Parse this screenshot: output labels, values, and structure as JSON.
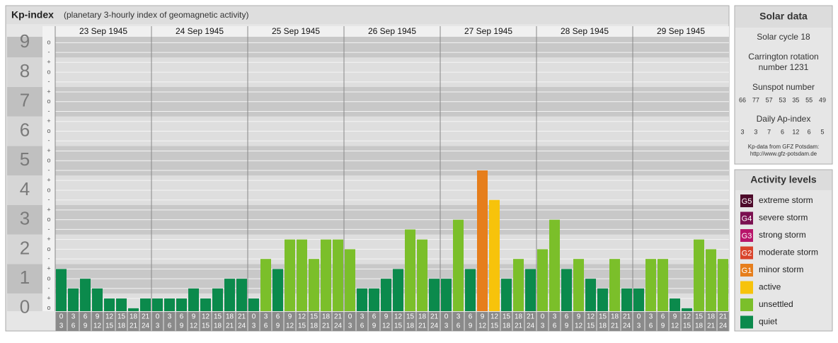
{
  "chart_data": {
    "type": "bar",
    "title": "Kp-index",
    "subtitle": "(planetary 3-hourly index of geomagnetic activity)",
    "days": [
      "23 Sep 1945",
      "24 Sep 1945",
      "25 Sep 1945",
      "26 Sep 1945",
      "27 Sep 1945",
      "28 Sep 1945",
      "29 Sep 1945"
    ],
    "intervals": [
      [
        0,
        3
      ],
      [
        3,
        6
      ],
      [
        6,
        9
      ],
      [
        9,
        12
      ],
      [
        12,
        15
      ],
      [
        15,
        18
      ],
      [
        18,
        21
      ],
      [
        21,
        24
      ]
    ],
    "values": [
      1.33,
      0.67,
      1,
      0.67,
      0.33,
      0.33,
      0,
      0.33,
      0.33,
      0.33,
      0.33,
      0.67,
      0.33,
      0.67,
      1,
      1,
      0.33,
      1.67,
      1.33,
      2.33,
      2.33,
      1.67,
      2.33,
      2.33,
      2,
      0.67,
      0.67,
      1,
      1.33,
      2.67,
      2.33,
      1,
      1,
      3,
      1.33,
      4.67,
      3.67,
      1,
      1.67,
      1.33,
      2,
      3,
      1.33,
      1.67,
      1,
      0.67,
      1.67,
      0.67,
      0.67,
      1.67,
      1.67,
      0.33,
      0,
      2.33,
      2,
      1.67
    ],
    "ylim": [
      -0.1,
      9.2
    ],
    "yticks": [
      0,
      1,
      2,
      3,
      4,
      5,
      6,
      7,
      8,
      9
    ],
    "minor_ticks": [
      {
        "value": 0,
        "label": "o"
      },
      {
        "value": 0.33,
        "label": "+"
      },
      {
        "value": 0.67,
        "label": "-"
      },
      {
        "value": 1,
        "label": "o"
      },
      {
        "value": 1.33,
        "label": "+"
      },
      {
        "value": 1.67,
        "label": "-"
      },
      {
        "value": 2,
        "label": "o"
      },
      {
        "value": 2.33,
        "label": "+"
      },
      {
        "value": 2.67,
        "label": "-"
      },
      {
        "value": 3,
        "label": "o"
      },
      {
        "value": 3.33,
        "label": "+"
      },
      {
        "value": 3.67,
        "label": "-"
      },
      {
        "value": 4,
        "label": "o"
      },
      {
        "value": 4.33,
        "label": "+"
      },
      {
        "value": 4.67,
        "label": "-"
      },
      {
        "value": 5,
        "label": "o"
      },
      {
        "value": 5.33,
        "label": "+"
      },
      {
        "value": 5.67,
        "label": "-"
      },
      {
        "value": 6,
        "label": "o"
      },
      {
        "value": 6.33,
        "label": "+"
      },
      {
        "value": 6.67,
        "label": "-"
      },
      {
        "value": 7,
        "label": "o"
      },
      {
        "value": 7.33,
        "label": "+"
      },
      {
        "value": 7.67,
        "label": "-"
      },
      {
        "value": 8,
        "label": "o"
      },
      {
        "value": 8.33,
        "label": "+"
      },
      {
        "value": 8.67,
        "label": "-"
      },
      {
        "value": 9,
        "label": "o"
      }
    ],
    "grid": true,
    "legend_title": "Activity levels",
    "levels": [
      {
        "badge": "G5",
        "label": "extreme storm",
        "color": "#4d0a2a",
        "min": 8.67
      },
      {
        "badge": "G4",
        "label": "severe storm",
        "color": "#7a1050",
        "min": 7.67
      },
      {
        "badge": "G3",
        "label": "strong storm",
        "color": "#b8156a",
        "min": 6.67
      },
      {
        "badge": "G2",
        "label": "moderate storm",
        "color": "#d9432a",
        "min": 5.67
      },
      {
        "badge": "G1",
        "label": "minor storm",
        "color": "#e67e1c",
        "min": 4.67
      },
      {
        "label": "active",
        "color": "#f7c30b",
        "min": 3.67
      },
      {
        "label": "unsettled",
        "color": "#7bbf2a",
        "min": 1.67
      },
      {
        "label": "quiet",
        "color": "#0b8a4c",
        "min": 0
      }
    ]
  },
  "solar_data": {
    "title": "Solar data",
    "solar_cycle_label": "Solar cycle",
    "solar_cycle": 18,
    "carrington_label_1": "Carrington rotation",
    "carrington_label_2": "number",
    "carrington_rotation": 1231,
    "sunspot_label": "Sunspot number",
    "sunspot_numbers": [
      66,
      77,
      57,
      53,
      35,
      55,
      49
    ],
    "ap_label": "Daily Ap-index",
    "ap_index": [
      3,
      3,
      7,
      6,
      12,
      6,
      5
    ],
    "source_1": "Kp-data from GFZ Potsdam:",
    "source_2": "http://www.gfz-potsdam.de"
  }
}
